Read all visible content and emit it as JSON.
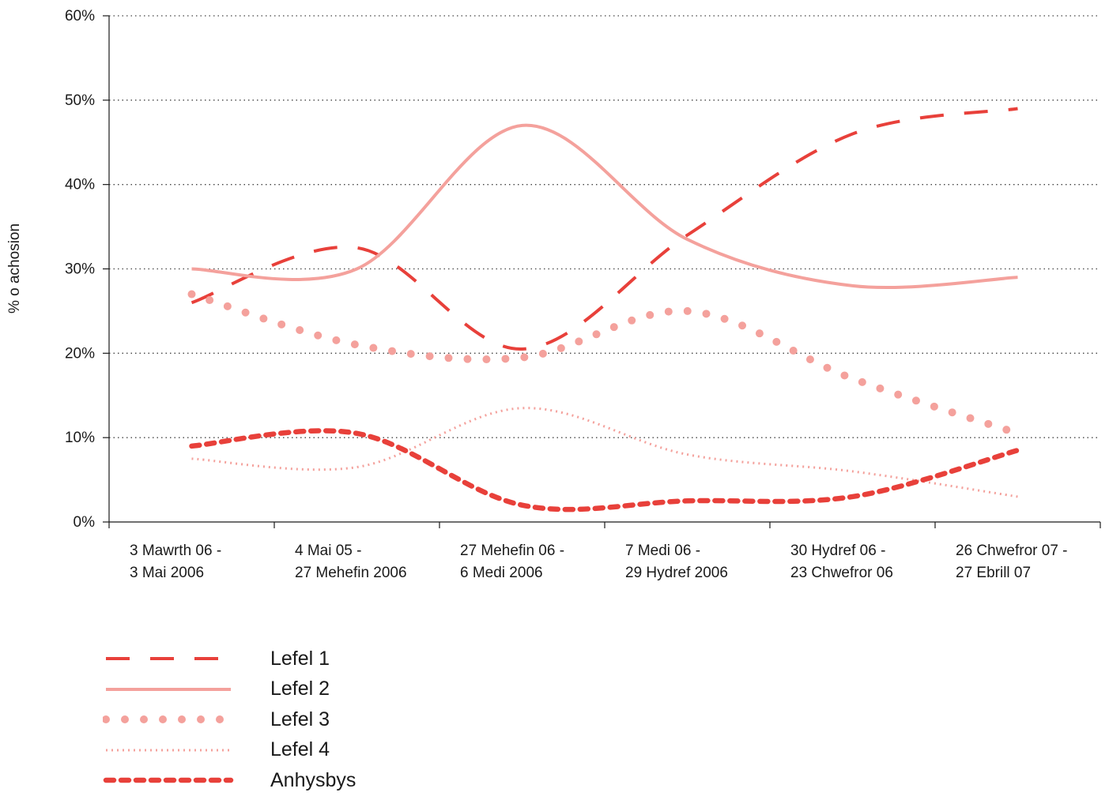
{
  "chart_data": {
    "type": "line",
    "ylabel": "% o achosion",
    "xlabel": "",
    "ylim": [
      0,
      60
    ],
    "yticks": [
      "0%",
      "10%",
      "20%",
      "30%",
      "40%",
      "50%",
      "60%"
    ],
    "grid": "horizontal-dotted",
    "legend_position": "bottom-left",
    "categories": [
      [
        "3 Mawrth 06 -",
        "3 Mai 2006"
      ],
      [
        "4 Mai 05 -",
        "27 Mehefin 2006"
      ],
      [
        "27 Mehefin 06 -",
        "6 Medi 2006"
      ],
      [
        "7 Medi 06 -",
        "29 Hydref 2006"
      ],
      [
        "30 Hydref 06 -",
        "23 Chwefror 06"
      ],
      [
        "26 Chwefror 07 -",
        "27 Ebrill 07"
      ]
    ],
    "series": [
      {
        "name": "Lefel 1",
        "color": "#e8403a",
        "style": "dashed",
        "values": [
          26,
          32.5,
          20.5,
          34,
          46,
          49
        ]
      },
      {
        "name": "Lefel 2",
        "color": "#f4a19c",
        "style": "solid",
        "values": [
          30,
          30,
          47,
          33.5,
          28,
          29
        ]
      },
      {
        "name": "Lefel 3",
        "color": "#f4a19c",
        "style": "dots",
        "values": [
          27,
          21,
          19.5,
          25,
          17,
          10.5
        ]
      },
      {
        "name": "Lefel 4",
        "color": "#f4a19c",
        "style": "fine-dots",
        "values": [
          7.5,
          6.5,
          13.5,
          8,
          6,
          3
        ]
      },
      {
        "name": "Anhysbys",
        "color": "#e8403a",
        "style": "short-dash",
        "values": [
          9,
          10.5,
          2,
          2.5,
          3,
          8.5
        ]
      }
    ]
  }
}
